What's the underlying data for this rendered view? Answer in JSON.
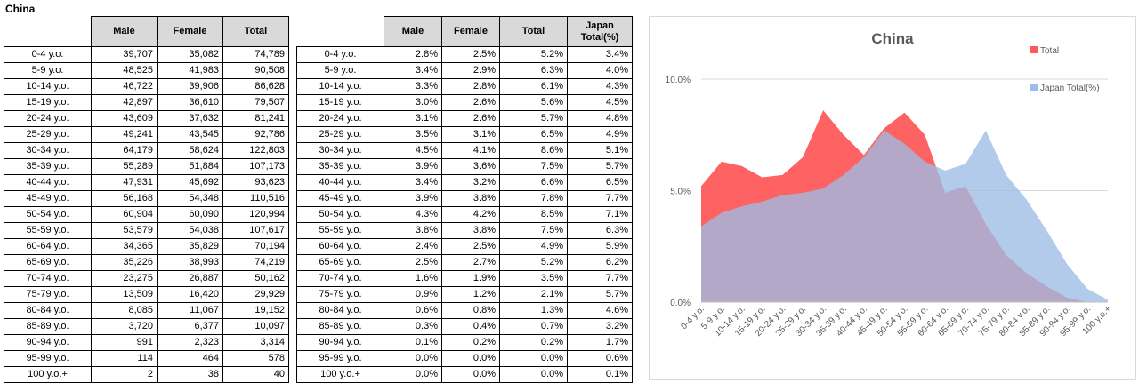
{
  "sheet_title": "China",
  "table_counts": {
    "headers": [
      "Male",
      "Female",
      "Total"
    ],
    "rows": [
      [
        "0-4 y.o.",
        "39,707",
        "35,082",
        "74,789"
      ],
      [
        "5-9 y.o.",
        "48,525",
        "41,983",
        "90,508"
      ],
      [
        "10-14 y.o.",
        "46,722",
        "39,906",
        "86,628"
      ],
      [
        "15-19 y.o.",
        "42,897",
        "36,610",
        "79,507"
      ],
      [
        "20-24 y.o.",
        "43,609",
        "37,632",
        "81,241"
      ],
      [
        "25-29 y.o.",
        "49,241",
        "43,545",
        "92,786"
      ],
      [
        "30-34 y.o.",
        "64,179",
        "58,624",
        "122,803"
      ],
      [
        "35-39 y.o.",
        "55,289",
        "51,884",
        "107,173"
      ],
      [
        "40-44 y.o.",
        "47,931",
        "45,692",
        "93,623"
      ],
      [
        "45-49 y.o.",
        "56,168",
        "54,348",
        "110,516"
      ],
      [
        "50-54 y.o.",
        "60,904",
        "60,090",
        "120,994"
      ],
      [
        "55-59 y.o.",
        "53,579",
        "54,038",
        "107,617"
      ],
      [
        "60-64 y.o.",
        "34,365",
        "35,829",
        "70,194"
      ],
      [
        "65-69 y.o.",
        "35,226",
        "38,993",
        "74,219"
      ],
      [
        "70-74 y.o.",
        "23,275",
        "26,887",
        "50,162"
      ],
      [
        "75-79 y.o.",
        "13,509",
        "16,420",
        "29,929"
      ],
      [
        "80-84 y.o.",
        "8,085",
        "11,067",
        "19,152"
      ],
      [
        "85-89 y.o.",
        "3,720",
        "6,377",
        "10,097"
      ],
      [
        "90-94 y.o.",
        "991",
        "2,323",
        "3,314"
      ],
      [
        "95-99 y.o.",
        "114",
        "464",
        "578"
      ],
      [
        "100 y.o.+",
        "2",
        "38",
        "40"
      ]
    ]
  },
  "table_percent": {
    "headers": [
      "Male",
      "Female",
      "Total",
      "Japan Total(%)"
    ],
    "rows": [
      [
        "0-4 y.o.",
        "2.8%",
        "2.5%",
        "5.2%",
        "3.4%"
      ],
      [
        "5-9 y.o.",
        "3.4%",
        "2.9%",
        "6.3%",
        "4.0%"
      ],
      [
        "10-14 y.o.",
        "3.3%",
        "2.8%",
        "6.1%",
        "4.3%"
      ],
      [
        "15-19 y.o.",
        "3.0%",
        "2.6%",
        "5.6%",
        "4.5%"
      ],
      [
        "20-24 y.o.",
        "3.1%",
        "2.6%",
        "5.7%",
        "4.8%"
      ],
      [
        "25-29 y.o.",
        "3.5%",
        "3.1%",
        "6.5%",
        "4.9%"
      ],
      [
        "30-34 y.o.",
        "4.5%",
        "4.1%",
        "8.6%",
        "5.1%"
      ],
      [
        "35-39 y.o.",
        "3.9%",
        "3.6%",
        "7.5%",
        "5.7%"
      ],
      [
        "40-44 y.o.",
        "3.4%",
        "3.2%",
        "6.6%",
        "6.5%"
      ],
      [
        "45-49 y.o.",
        "3.9%",
        "3.8%",
        "7.8%",
        "7.7%"
      ],
      [
        "50-54 y.o.",
        "4.3%",
        "4.2%",
        "8.5%",
        "7.1%"
      ],
      [
        "55-59 y.o.",
        "3.8%",
        "3.8%",
        "7.5%",
        "6.3%"
      ],
      [
        "60-64 y.o.",
        "2.4%",
        "2.5%",
        "4.9%",
        "5.9%"
      ],
      [
        "65-69 y.o.",
        "2.5%",
        "2.7%",
        "5.2%",
        "6.2%"
      ],
      [
        "70-74 y.o.",
        "1.6%",
        "1.9%",
        "3.5%",
        "7.7%"
      ],
      [
        "75-79 y.o.",
        "0.9%",
        "1.2%",
        "2.1%",
        "5.7%"
      ],
      [
        "80-84 y.o.",
        "0.6%",
        "0.8%",
        "1.3%",
        "4.6%"
      ],
      [
        "85-89 y.o.",
        "0.3%",
        "0.4%",
        "0.7%",
        "3.2%"
      ],
      [
        "90-94 y.o.",
        "0.1%",
        "0.2%",
        "0.2%",
        "1.7%"
      ],
      [
        "95-99 y.o.",
        "0.0%",
        "0.0%",
        "0.0%",
        "0.6%"
      ],
      [
        "100 y.o.+",
        "0.0%",
        "0.0%",
        "0.0%",
        "0.1%"
      ]
    ]
  },
  "chart_data": {
    "type": "area",
    "title": "China",
    "categories": [
      "0-4 y.o.",
      "5-9 y.o.",
      "10-14 y.o.",
      "15-19 y.o.",
      "20-24 y.o.",
      "25-29 y.o.",
      "30-34 y.o.",
      "35-39 y.o.",
      "40-44 y.o.",
      "45-49 y.o.",
      "50-54 y.o.",
      "55-59 y.o.",
      "60-64 y.o.",
      "65-69 y.o.",
      "70-74 y.o.",
      "75-79 y.o.",
      "80-84 y.o.",
      "85-89 y.o.",
      "90-94 y.o.",
      "95-99 y.o.",
      "100 y.o.+"
    ],
    "series": [
      {
        "name": "Total",
        "color": "#ff5a5a",
        "values": [
          5.2,
          6.3,
          6.1,
          5.6,
          5.7,
          6.5,
          8.6,
          7.5,
          6.6,
          7.8,
          8.5,
          7.5,
          4.9,
          5.2,
          3.5,
          2.1,
          1.3,
          0.7,
          0.2,
          0.0,
          0.0
        ]
      },
      {
        "name": "Japan Total(%)",
        "color": "#9dbde6",
        "values": [
          3.4,
          4.0,
          4.3,
          4.5,
          4.8,
          4.9,
          5.1,
          5.7,
          6.5,
          7.7,
          7.1,
          6.3,
          5.9,
          6.2,
          7.7,
          5.7,
          4.6,
          3.2,
          1.7,
          0.6,
          0.1
        ]
      }
    ],
    "ylim": [
      0,
      10
    ],
    "yticks": [
      "0.0%",
      "5.0%",
      "10.0%"
    ],
    "grid": true,
    "legend": "right"
  }
}
